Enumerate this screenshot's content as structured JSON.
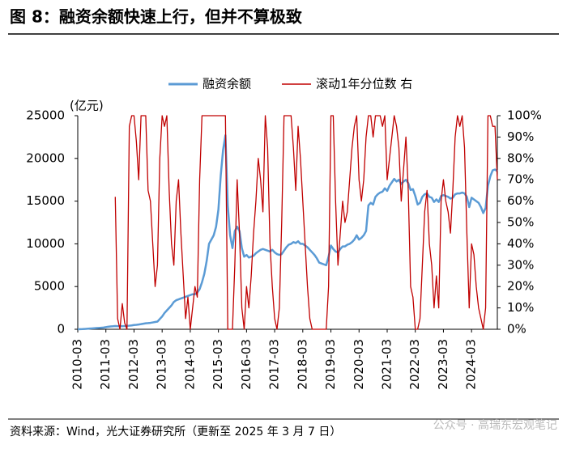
{
  "chart_data": {
    "type": "line",
    "title": "图 8：融资余额快速上行，但并不算极致",
    "y_label": "(亿元)",
    "source": "资料来源：Wind，光大证券研究所（更新至 2025 年 3 月 7 日）",
    "watermark": "公众号 · 高瑞东宏观笔记",
    "xlim": [
      "2010-03",
      "2025-02"
    ],
    "xticks": [
      "2010-03",
      "2011-03",
      "2012-03",
      "2013-03",
      "2014-03",
      "2015-03",
      "2016-03",
      "2017-03",
      "2018-03",
      "2019-03",
      "2020-03",
      "2021-03",
      "2022-03",
      "2023-03",
      "2024-03"
    ],
    "ylim": [
      0,
      25000
    ],
    "yticks": [
      0,
      5000,
      10000,
      15000,
      20000,
      25000
    ],
    "y2lim": [
      0,
      100
    ],
    "y2ticks": [
      {
        "value": 0,
        "label": "0%"
      },
      {
        "value": 10,
        "label": "10%"
      },
      {
        "value": 20,
        "label": "20%"
      },
      {
        "value": 30,
        "label": "30%"
      },
      {
        "value": 40,
        "label": "40%"
      },
      {
        "value": 50,
        "label": "50%"
      },
      {
        "value": 60,
        "label": "60%"
      },
      {
        "value": 70,
        "label": "70%"
      },
      {
        "value": 80,
        "label": "80%"
      },
      {
        "value": 90,
        "label": "90%"
      },
      {
        "value": 100,
        "label": "100%"
      }
    ],
    "grid": false,
    "legend": "top",
    "x": [
      "2010-03",
      "2010-04",
      "2010-05",
      "2010-06",
      "2010-07",
      "2010-08",
      "2010-09",
      "2010-10",
      "2010-11",
      "2010-12",
      "2011-01",
      "2011-02",
      "2011-03",
      "2011-04",
      "2011-05",
      "2011-06",
      "2011-07",
      "2011-08",
      "2011-09",
      "2011-10",
      "2011-11",
      "2011-12",
      "2012-01",
      "2012-02",
      "2012-03",
      "2012-04",
      "2012-05",
      "2012-06",
      "2012-07",
      "2012-08",
      "2012-09",
      "2012-10",
      "2012-11",
      "2012-12",
      "2013-01",
      "2013-02",
      "2013-03",
      "2013-04",
      "2013-05",
      "2013-06",
      "2013-07",
      "2013-08",
      "2013-09",
      "2013-10",
      "2013-11",
      "2013-12",
      "2014-01",
      "2014-02",
      "2014-03",
      "2014-04",
      "2014-05",
      "2014-06",
      "2014-07",
      "2014-08",
      "2014-09",
      "2014-10",
      "2014-11",
      "2014-12",
      "2015-01",
      "2015-02",
      "2015-03",
      "2015-04",
      "2015-05",
      "2015-06",
      "2015-07",
      "2015-08",
      "2015-09",
      "2015-10",
      "2015-11",
      "2015-12",
      "2016-01",
      "2016-02",
      "2016-03",
      "2016-04",
      "2016-05",
      "2016-06",
      "2016-07",
      "2016-08",
      "2016-09",
      "2016-10",
      "2016-11",
      "2016-12",
      "2017-01",
      "2017-02",
      "2017-03",
      "2017-04",
      "2017-05",
      "2017-06",
      "2017-07",
      "2017-08",
      "2017-09",
      "2017-10",
      "2017-11",
      "2017-12",
      "2018-01",
      "2018-02",
      "2018-03",
      "2018-04",
      "2018-05",
      "2018-06",
      "2018-07",
      "2018-08",
      "2018-09",
      "2018-10",
      "2018-11",
      "2018-12",
      "2019-01",
      "2019-02",
      "2019-03",
      "2019-04",
      "2019-05",
      "2019-06",
      "2019-07",
      "2019-08",
      "2019-09",
      "2019-10",
      "2019-11",
      "2019-12",
      "2020-01",
      "2020-02",
      "2020-03",
      "2020-04",
      "2020-05",
      "2020-06",
      "2020-07",
      "2020-08",
      "2020-09",
      "2020-10",
      "2020-11",
      "2020-12",
      "2021-01",
      "2021-02",
      "2021-03",
      "2021-04",
      "2021-05",
      "2021-06",
      "2021-07",
      "2021-08",
      "2021-09",
      "2021-10",
      "2021-11",
      "2021-12",
      "2022-01",
      "2022-02",
      "2022-03",
      "2022-04",
      "2022-05",
      "2022-06",
      "2022-07",
      "2022-08",
      "2022-09",
      "2022-10",
      "2022-11",
      "2022-12",
      "2023-01",
      "2023-02",
      "2023-03",
      "2023-04",
      "2023-05",
      "2023-06",
      "2023-07",
      "2023-08",
      "2023-09",
      "2023-10",
      "2023-11",
      "2023-12",
      "2024-01",
      "2024-02",
      "2024-03",
      "2024-04",
      "2024-05",
      "2024-06",
      "2024-07",
      "2024-08",
      "2024-09",
      "2024-10",
      "2024-11",
      "2024-12",
      "2025-01",
      "2025-02"
    ],
    "series": [
      {
        "name": "融资余额",
        "color": "#5b9bd5",
        "axis": "y",
        "values": [
          0,
          10,
          20,
          40,
          60,
          80,
          100,
          120,
          140,
          160,
          180,
          200,
          250,
          300,
          330,
          350,
          380,
          370,
          360,
          370,
          380,
          400,
          420,
          450,
          500,
          520,
          560,
          600,
          650,
          700,
          720,
          750,
          800,
          850,
          900,
          1200,
          1500,
          1900,
          2200,
          2500,
          2800,
          3200,
          3400,
          3500,
          3600,
          3700,
          3800,
          3900,
          4000,
          4100,
          4100,
          4300,
          4700,
          5500,
          6500,
          8000,
          10000,
          10500,
          11000,
          12000,
          14000,
          18000,
          21000,
          22700,
          14500,
          11000,
          9500,
          11500,
          12000,
          11500,
          9500,
          8500,
          8700,
          8400,
          8500,
          8600,
          8900,
          9100,
          9300,
          9400,
          9300,
          9200,
          9100,
          9300,
          9000,
          8800,
          8700,
          8800,
          9200,
          9600,
          9900,
          10000,
          10200,
          10100,
          10300,
          10000,
          10000,
          9800,
          9600,
          9300,
          9000,
          8700,
          8300,
          7800,
          7700,
          7600,
          7500,
          8500,
          9800,
          9400,
          9100,
          9000,
          9400,
          9700,
          9700,
          9900,
          10000,
          10200,
          10500,
          11000,
          10500,
          10700,
          11000,
          11500,
          14500,
          14800,
          14600,
          15500,
          15800,
          16000,
          16100,
          16500,
          16200,
          16800,
          17200,
          17600,
          17300,
          17500,
          17000,
          17300,
          17500,
          17100,
          16300,
          16400,
          15600,
          14600,
          14800,
          15500,
          15800,
          15900,
          15500,
          15400,
          14900,
          15200,
          14900,
          15600,
          15700,
          15600,
          15500,
          15300,
          15400,
          15800,
          15900,
          15900,
          16000,
          15900,
          15500,
          14300,
          15400,
          15200,
          15000,
          14800,
          14300,
          13600,
          14200,
          16800,
          17900,
          18600,
          18700,
          18500
        ]
      },
      {
        "name": "滚动1年分位数 右",
        "color": "#c00000",
        "axis": "y2",
        "values": [
          null,
          null,
          null,
          null,
          null,
          null,
          null,
          null,
          null,
          null,
          null,
          null,
          null,
          null,
          null,
          null,
          62,
          5,
          0,
          12,
          3,
          0,
          95,
          100,
          100,
          88,
          70,
          100,
          100,
          100,
          65,
          60,
          40,
          20,
          30,
          80,
          100,
          95,
          100,
          65,
          40,
          30,
          60,
          70,
          45,
          25,
          5,
          15,
          0,
          10,
          20,
          15,
          70,
          100,
          100,
          100,
          100,
          100,
          100,
          100,
          100,
          100,
          100,
          100,
          0,
          0,
          0,
          30,
          70,
          45,
          10,
          0,
          20,
          10,
          25,
          45,
          60,
          80,
          70,
          55,
          100,
          85,
          40,
          20,
          5,
          0,
          10,
          50,
          100,
          100,
          100,
          100,
          85,
          65,
          95,
          80,
          60,
          40,
          20,
          5,
          0,
          0,
          0,
          0,
          0,
          0,
          0,
          20,
          100,
          100,
          60,
          30,
          45,
          60,
          50,
          55,
          70,
          85,
          95,
          100,
          70,
          60,
          70,
          90,
          100,
          100,
          90,
          100,
          100,
          100,
          95,
          100,
          70,
          80,
          90,
          100,
          95,
          85,
          60,
          75,
          90,
          65,
          20,
          15,
          0,
          0,
          5,
          30,
          55,
          65,
          40,
          30,
          10,
          25,
          10,
          60,
          70,
          60,
          55,
          45,
          65,
          90,
          100,
          95,
          100,
          85,
          45,
          10,
          40,
          35,
          20,
          10,
          5,
          0,
          10,
          100,
          100,
          95,
          95,
          70
        ]
      }
    ]
  }
}
